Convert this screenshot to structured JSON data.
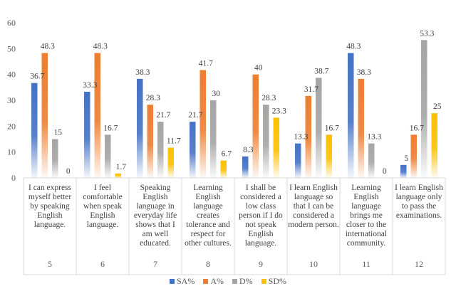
{
  "chart_data": {
    "type": "bar",
    "ylim": [
      0,
      60
    ],
    "yticks": [
      "0",
      "10",
      "20",
      "30",
      "40",
      "50",
      "60"
    ],
    "item_numbers": [
      "5",
      "6",
      "7",
      "8",
      "9",
      "10",
      "11",
      "12"
    ],
    "categories": [
      "I can express\nmyself better\nby speaking\nEnglish\nlanguage.",
      "I feel\ncomfortable\nwhen speak\nEnglish\nlanguage.",
      "Speaking\nEnglish\nlanguage in\neveryday life\nshows that I\nam well\neducated.",
      "Learning\nEnglish\nlanguage\ncreates\ntolerance and\nrespect for\nother cultures.",
      "I shall be\nconsidered a\nlow class\nperson if I do\nnot speak\nEnglish\nlanguage.",
      "I learn English\nlanguage so\nthat I can be\nconsidered a\nmodern person.",
      "Learning\nEnglish\nlanguage\nbrings me\ncloser to the\ninternational\ncommunity.",
      "I learn English\nlanguage only\nto pass the\nexaminations."
    ],
    "series": [
      {
        "name": "SA%",
        "color": "#4472C4",
        "values": [
          36.7,
          33.3,
          38.3,
          21.7,
          8.3,
          13.3,
          48.3,
          5
        ],
        "labels": [
          "36.7",
          "33.3",
          "38.3",
          "21.7",
          "8.3",
          "13.3",
          "48.3",
          "5"
        ]
      },
      {
        "name": "A%",
        "color": "#ED7D31",
        "values": [
          48.3,
          48.3,
          28.3,
          41.7,
          40,
          31.7,
          38.3,
          16.7
        ],
        "labels": [
          "48.3",
          "48.3",
          "28.3",
          "41.7",
          "40",
          "31.7",
          "38.3",
          "16.7"
        ]
      },
      {
        "name": "D%",
        "color": "#A5A5A5",
        "values": [
          15,
          16.7,
          21.7,
          30,
          28.3,
          38.7,
          13.3,
          53.3
        ],
        "labels": [
          "15",
          "16.7",
          "21.7",
          "30",
          "28.3",
          "38.7",
          "13.3",
          "53.3"
        ]
      },
      {
        "name": "SD%",
        "color": "#FFC000",
        "values": [
          0,
          1.7,
          11.7,
          6.7,
          23.3,
          16.7,
          0,
          25
        ],
        "labels": [
          "0",
          "1.7",
          "11.7",
          "6.7",
          "23.3",
          "16.7",
          "0",
          "25"
        ]
      }
    ],
    "legend_position": "bottom",
    "grid": false
  }
}
